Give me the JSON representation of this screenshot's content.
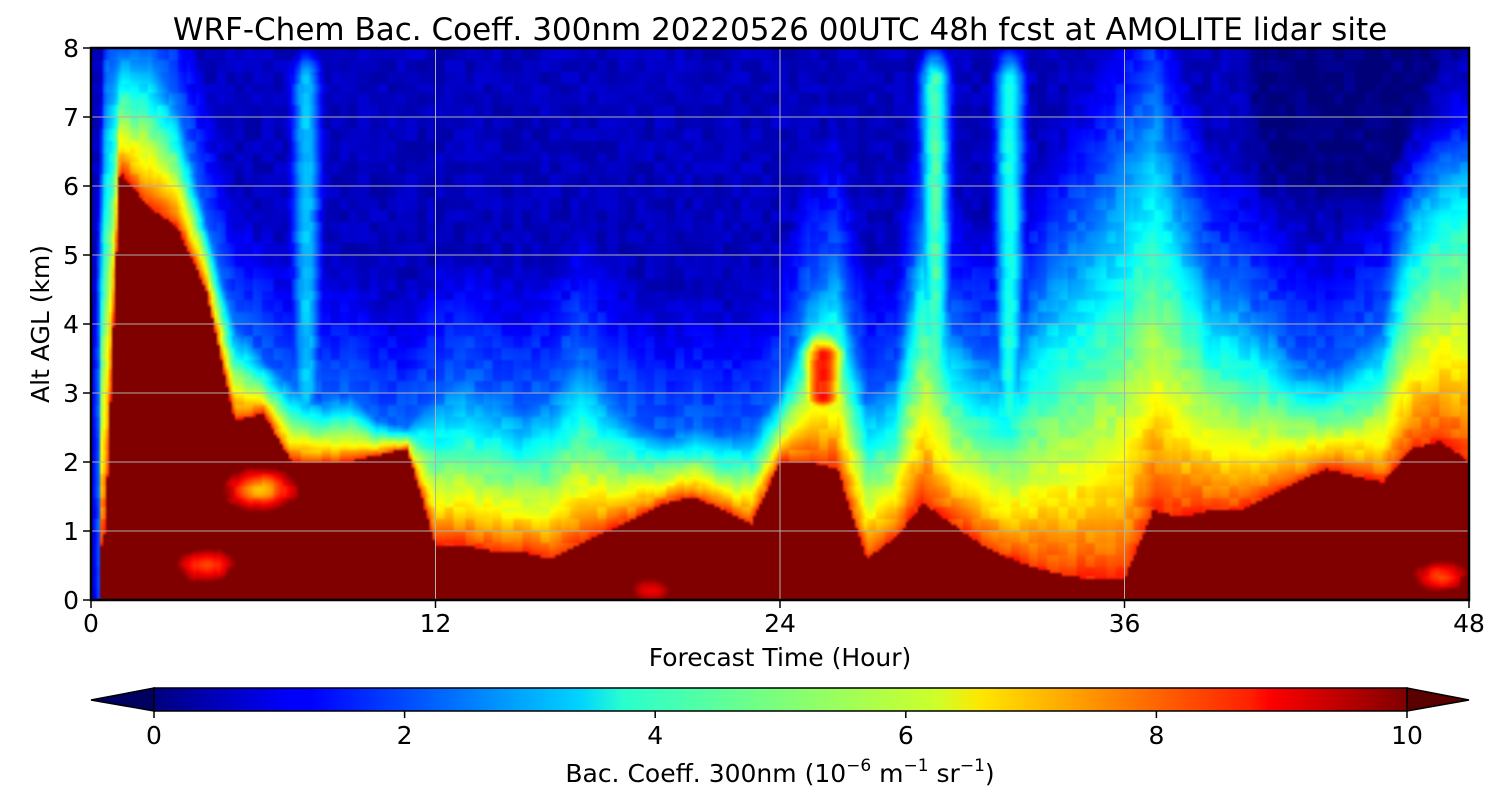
{
  "chart_data": {
    "type": "heatmap",
    "title": "WRF-Chem Bac. Coeff. 300nm  20220526 00UTC 48h fcst at AMOLITE lidar site",
    "xlabel": "Forecast Time (Hour)",
    "ylabel": "Alt AGL (km)",
    "xlim": [
      0,
      48
    ],
    "ylim": [
      0,
      8
    ],
    "xticks": [
      "0",
      "12",
      "24",
      "36",
      "48"
    ],
    "yticks": [
      "0",
      "1",
      "2",
      "3",
      "4",
      "5",
      "6",
      "7",
      "8"
    ],
    "grid": true,
    "colormap": "jet",
    "colorbar": {
      "label_main": "Bac. Coeff. 300nm  (10",
      "label_exp1": "−6",
      "label_mid": " m",
      "label_exp2": "−1",
      "label_mid2": " sr",
      "label_exp3": "−1",
      "label_end": ")",
      "range": [
        0,
        10
      ],
      "ticks": [
        "0",
        "2",
        "4",
        "6",
        "8",
        "10"
      ],
      "extend": "both",
      "under_color": "#000060",
      "over_color": "#5a0000"
    },
    "description_units": "10^-6 m^-1 sr^-1",
    "hours": [
      0,
      0.5,
      1,
      2,
      3,
      4,
      5,
      6,
      7,
      8,
      9,
      10,
      11,
      12,
      13,
      14,
      15,
      16,
      17,
      18,
      19,
      20,
      21,
      22,
      23,
      24,
      25,
      26,
      27,
      28,
      29,
      30,
      31,
      32,
      33,
      34,
      35,
      36,
      37,
      38,
      39,
      40,
      41,
      42,
      43,
      44,
      45,
      46,
      47,
      48
    ],
    "boundary_layer_top_km": [
      0.2,
      1.0,
      6.2,
      5.7,
      5.4,
      4.5,
      2.6,
      2.7,
      2.0,
      2.0,
      2.0,
      2.1,
      2.2,
      0.8,
      0.8,
      0.7,
      0.7,
      0.6,
      0.8,
      1.0,
      1.2,
      1.4,
      1.5,
      1.3,
      1.1,
      2.0,
      2.0,
      1.9,
      0.6,
      0.9,
      1.4,
      1.1,
      0.8,
      0.6,
      0.45,
      0.35,
      0.3,
      0.3,
      1.3,
      1.2,
      1.3,
      1.3,
      1.5,
      1.7,
      1.9,
      1.8,
      1.7,
      2.2,
      2.3,
      2.0
    ],
    "aerosol_top_km": [
      0.5,
      7.9,
      8.0,
      8.0,
      7.2,
      5.5,
      4.0,
      3.5,
      3.1,
      2.9,
      3.0,
      2.6,
      2.5,
      3.0,
      3.2,
      3.0,
      2.8,
      3.0,
      3.6,
      3.0,
      2.6,
      2.4,
      2.5,
      2.4,
      2.5,
      3.0,
      4.5,
      5.0,
      3.0,
      3.2,
      5.8,
      4.0,
      3.6,
      3.5,
      4.5,
      5.2,
      5.8,
      6.6,
      7.5,
      6.0,
      4.7,
      4.5,
      4.0,
      3.5,
      3.3,
      3.6,
      4.0,
      6.0,
      7.0,
      7.5
    ],
    "plumes": [
      {
        "hour": 25.5,
        "bottom_km": 2.5,
        "top_km": 4.0,
        "peak": 8.5
      },
      {
        "hour": 29.4,
        "bottom_km": 2.0,
        "top_km": 8.0,
        "peak": 4.5
      },
      {
        "hour": 32.0,
        "bottom_km": 2.0,
        "top_km": 8.0,
        "peak": 4.0
      },
      {
        "hour": 7.5,
        "bottom_km": 2.5,
        "top_km": 8.0,
        "peak": 3.2
      }
    ],
    "pockets": [
      {
        "hour": 4.0,
        "alt_km": 0.5,
        "value": 8.0
      },
      {
        "hour": 5.9,
        "alt_km": 1.6,
        "value": 7.0
      },
      {
        "hour": 47.0,
        "alt_km": 0.35,
        "value": 8.2
      },
      {
        "hour": 19.5,
        "alt_km": 0.15,
        "value": 9.0
      }
    ]
  }
}
